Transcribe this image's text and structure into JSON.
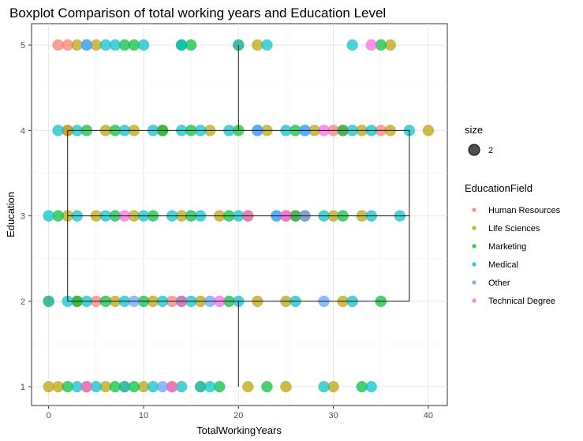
{
  "chart_data": {
    "type": "scatter",
    "title": "Boxplot Comparison of total working years and Education Level",
    "xlabel": "TotalWorkingYears",
    "ylabel": "Education",
    "xlim": [
      -1.8,
      42
    ],
    "ylim": [
      0.78,
      5.25
    ],
    "x_ticks": [
      0,
      10,
      20,
      30,
      40
    ],
    "y_ticks": [
      1,
      2,
      3,
      4,
      5
    ],
    "grid": true,
    "legend_position": "right",
    "size_legend": {
      "title": "size",
      "entries": [
        "2"
      ]
    },
    "color_legend": {
      "title": "EducationField",
      "entries": [
        {
          "name": "Human Resources",
          "color": "#F8766D"
        },
        {
          "name": "Life Sciences",
          "color": "#B79F00"
        },
        {
          "name": "Marketing",
          "color": "#00BA38"
        },
        {
          "name": "Medical",
          "color": "#00BFC4"
        },
        {
          "name": "Other",
          "color": "#619CFF"
        },
        {
          "name": "Technical Degree",
          "color": "#F564E3"
        }
      ]
    },
    "boxplot": {
      "x_whisker_low": 2,
      "x_q1": 2,
      "x_median": 20,
      "x_q3": 38,
      "x_whisker_high": 38,
      "y_q1": 2,
      "y_median": 3,
      "y_q3": 4,
      "y_whisker_low": 1,
      "y_whisker_high": 5
    },
    "series": [
      {
        "name": "Human Resources",
        "points": [
          [
            2,
            4
          ],
          [
            30,
            4
          ],
          [
            31,
            4
          ],
          [
            35,
            4
          ],
          [
            26,
            3
          ],
          [
            5,
            2
          ],
          [
            13,
            2
          ],
          [
            1,
            5
          ],
          [
            2,
            5
          ],
          [
            25,
            3
          ]
        ]
      },
      {
        "name": "Life Sciences",
        "points": [
          [
            0,
            1
          ],
          [
            1,
            1
          ],
          [
            4,
            1
          ],
          [
            6,
            1
          ],
          [
            8,
            1
          ],
          [
            10,
            1
          ],
          [
            13,
            1
          ],
          [
            16,
            1
          ],
          [
            21,
            1
          ],
          [
            25,
            1
          ],
          [
            30,
            1
          ],
          [
            0,
            2
          ],
          [
            3,
            2
          ],
          [
            7,
            2
          ],
          [
            11,
            2
          ],
          [
            16,
            2
          ],
          [
            22,
            2
          ],
          [
            25,
            2
          ],
          [
            31,
            2
          ],
          [
            2,
            3
          ],
          [
            5,
            3
          ],
          [
            9,
            3
          ],
          [
            14,
            3
          ],
          [
            18,
            3
          ],
          [
            21,
            3
          ],
          [
            27,
            3
          ],
          [
            30,
            3
          ],
          [
            33,
            3
          ],
          [
            2,
            4
          ],
          [
            6,
            4
          ],
          [
            9,
            4
          ],
          [
            12,
            4
          ],
          [
            17,
            4
          ],
          [
            23,
            4
          ],
          [
            28,
            4
          ],
          [
            33,
            4
          ],
          [
            36,
            4
          ],
          [
            40,
            4
          ],
          [
            3,
            5
          ],
          [
            5,
            5
          ],
          [
            20,
            5
          ],
          [
            22,
            5
          ],
          [
            36,
            5
          ]
        ]
      },
      {
        "name": "Marketing",
        "points": [
          [
            2,
            1
          ],
          [
            7,
            1
          ],
          [
            9,
            1
          ],
          [
            18,
            1
          ],
          [
            23,
            1
          ],
          [
            33,
            1
          ],
          [
            3,
            2
          ],
          [
            6,
            2
          ],
          [
            10,
            2
          ],
          [
            14,
            2
          ],
          [
            19,
            2
          ],
          [
            35,
            2
          ],
          [
            1,
            3
          ],
          [
            7,
            3
          ],
          [
            11,
            3
          ],
          [
            15,
            3
          ],
          [
            19,
            3
          ],
          [
            26,
            3
          ],
          [
            31,
            3
          ],
          [
            4,
            4
          ],
          [
            7,
            4
          ],
          [
            12,
            4
          ],
          [
            15,
            4
          ],
          [
            20,
            4
          ],
          [
            26,
            4
          ],
          [
            31,
            4
          ],
          [
            8,
            5
          ],
          [
            9,
            5
          ],
          [
            14,
            5
          ],
          [
            15,
            5
          ],
          [
            35,
            5
          ]
        ]
      },
      {
        "name": "Medical",
        "points": [
          [
            3,
            1
          ],
          [
            5,
            1
          ],
          [
            8,
            1
          ],
          [
            11,
            1
          ],
          [
            14,
            1
          ],
          [
            16,
            1
          ],
          [
            17,
            1
          ],
          [
            29,
            1
          ],
          [
            34,
            1
          ],
          [
            0,
            2
          ],
          [
            2,
            2
          ],
          [
            4,
            2
          ],
          [
            8,
            2
          ],
          [
            12,
            2
          ],
          [
            15,
            2
          ],
          [
            20,
            2
          ],
          [
            26,
            2
          ],
          [
            32,
            2
          ],
          [
            0,
            3
          ],
          [
            3,
            3
          ],
          [
            6,
            3
          ],
          [
            10,
            3
          ],
          [
            13,
            3
          ],
          [
            16,
            3
          ],
          [
            20,
            3
          ],
          [
            24,
            3
          ],
          [
            29,
            3
          ],
          [
            34,
            3
          ],
          [
            37,
            3
          ],
          [
            1,
            4
          ],
          [
            3,
            4
          ],
          [
            8,
            4
          ],
          [
            11,
            4
          ],
          [
            14,
            4
          ],
          [
            16,
            4
          ],
          [
            19,
            4
          ],
          [
            22,
            4
          ],
          [
            25,
            4
          ],
          [
            27,
            4
          ],
          [
            32,
            4
          ],
          [
            34,
            4
          ],
          [
            38,
            4
          ],
          [
            4,
            5
          ],
          [
            6,
            5
          ],
          [
            7,
            5
          ],
          [
            10,
            5
          ],
          [
            14,
            5
          ],
          [
            20,
            5
          ],
          [
            23,
            5
          ],
          [
            32,
            5
          ]
        ]
      },
      {
        "name": "Other",
        "points": [
          [
            12,
            1
          ],
          [
            9,
            2
          ],
          [
            17,
            2
          ],
          [
            29,
            2
          ],
          [
            24,
            3
          ],
          [
            27,
            3
          ],
          [
            22,
            4
          ],
          [
            27,
            4
          ],
          [
            4,
            5
          ]
        ]
      },
      {
        "name": "Technical Degree",
        "points": [
          [
            4,
            1
          ],
          [
            13,
            1
          ],
          [
            14,
            2
          ],
          [
            18,
            2
          ],
          [
            8,
            3
          ],
          [
            21,
            3
          ],
          [
            25,
            3
          ],
          [
            29,
            4
          ],
          [
            34,
            5
          ]
        ]
      }
    ]
  }
}
